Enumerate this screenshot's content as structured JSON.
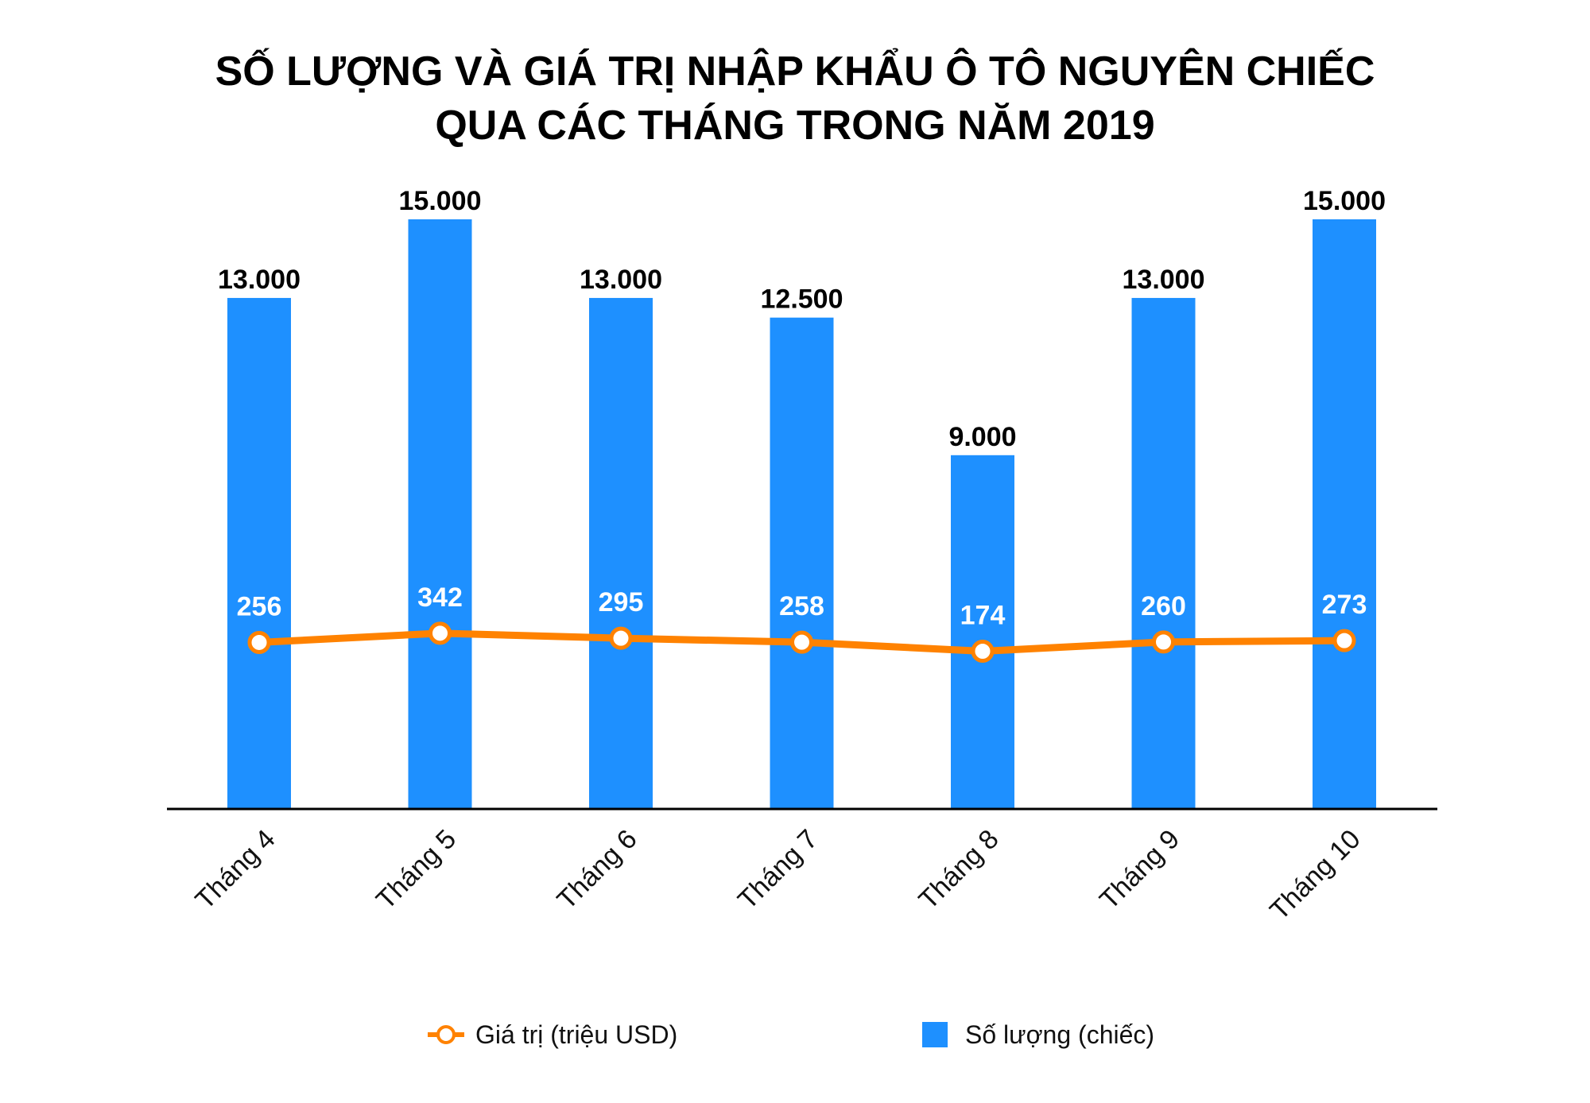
{
  "title_line1": "SỐ LƯỢNG VÀ GIÁ TRỊ NHẬP KHẨU Ô TÔ NGUYÊN CHIẾC",
  "title_line2": "QUA CÁC THÁNG TRONG NĂM 2019",
  "colors": {
    "bar": "#1e90ff",
    "line": "#ff8200",
    "marker_fill": "#ffffff",
    "axis": "#000000"
  },
  "chart_data": {
    "type": "bar",
    "title": "SỐ LƯỢNG VÀ GIÁ TRỊ NHẬP KHẨU Ô TÔ NGUYÊN CHIẾC QUA CÁC THÁNG TRONG NĂM 2019",
    "categories": [
      "Tháng 4",
      "Tháng 5",
      "Tháng 6",
      "Tháng 7",
      "Tháng 8",
      "Tháng 9",
      "Tháng 10"
    ],
    "series": [
      {
        "name": "Số lượng (chiếc)",
        "type": "bar",
        "values": [
          13000,
          15000,
          13000,
          12500,
          9000,
          13000,
          15000
        ],
        "labels": [
          "13.000",
          "15.000",
          "13.000",
          "12.500",
          "9.000",
          "13.000",
          "15.000"
        ]
      },
      {
        "name": "Giá trị (triệu USD)",
        "type": "line",
        "values": [
          256,
          342,
          295,
          258,
          174,
          260,
          273
        ],
        "labels": [
          "256",
          "342",
          "295",
          "258",
          "174",
          "260",
          "273"
        ]
      }
    ],
    "bar_ylim": [
      0,
      15000
    ],
    "grid": false,
    "legend": "bottom"
  }
}
